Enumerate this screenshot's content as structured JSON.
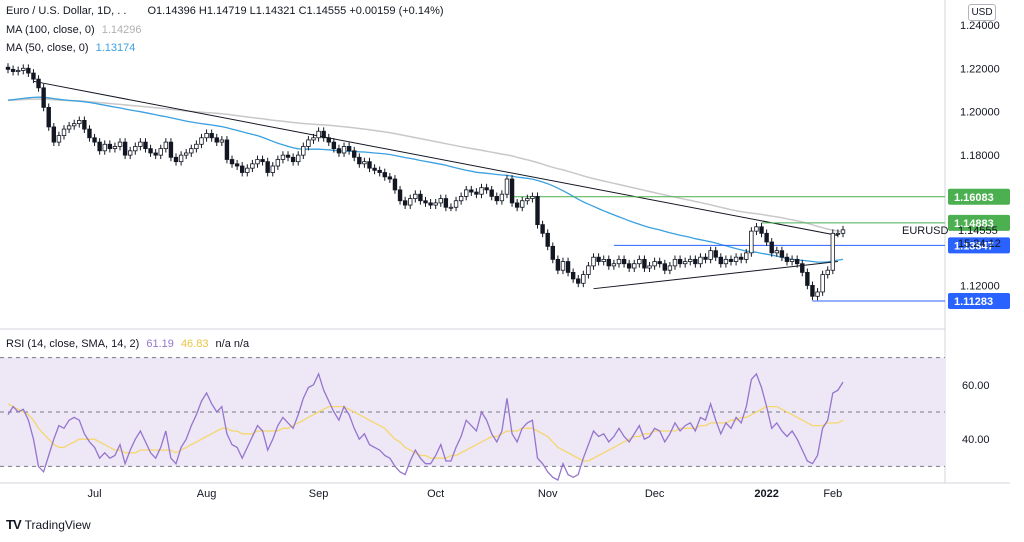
{
  "header": {
    "symbol": "Euro / U.S. Dollar, 1D, . .",
    "ohlc": "O1.14396  H1.14719  L1.14321  C1.14555  +0.00159 (+0.14%)",
    "ma100_label": "MA (100, close, 0)",
    "ma100_value": "1.14296",
    "ma50_label": "MA (50, close, 0)",
    "ma50_value": "1.13174",
    "rsi_label": "RSI (14, close, SMA, 14, 2)",
    "rsi_value": "61.19",
    "rsi_ma_value": "46.83",
    "rsi_na": "n/a  n/a",
    "currency": "USD"
  },
  "colors": {
    "candle": "#131722",
    "ma100": "#c8c8c8",
    "ma50": "#3aa0e0",
    "rsi": "#9575cd",
    "rsi_ma": "#f5d76e",
    "rsi_band": "#ede7f6",
    "green_level": "#4caf50",
    "blue_level": "#2962ff"
  },
  "price_labels": {
    "r1": "1.16083",
    "r2": "1.14883",
    "last": "1.14555",
    "symbol_tag": "EURUSD",
    "countdown": "15:24:12",
    "s1": "1.13847",
    "s2": "1.11283"
  },
  "branding": "TradingView",
  "chart_data": [
    {
      "type": "candlestick",
      "title": "Euro / U.S. Dollar, 1D",
      "x_tick_labels": [
        "Jul",
        "Aug",
        "Sep",
        "Oct",
        "Nov",
        "Dec",
        "2022",
        "Feb"
      ],
      "y_tick_labels": [
        "1.24000",
        "1.22000",
        "1.20000",
        "1.18000",
        "1.12000"
      ],
      "ylim": [
        1.105,
        1.245
      ],
      "close_series": [
        1.2195,
        1.2185,
        1.219,
        1.22,
        1.2178,
        1.215,
        1.211,
        1.202,
        1.193,
        1.186,
        1.189,
        1.192,
        1.1935,
        1.1945,
        1.196,
        1.192,
        1.188,
        1.186,
        1.182,
        1.185,
        1.183,
        1.184,
        1.186,
        1.18,
        1.182,
        1.184,
        1.186,
        1.183,
        1.181,
        1.18,
        1.183,
        1.186,
        1.179,
        1.177,
        1.18,
        1.181,
        1.183,
        1.185,
        1.188,
        1.19,
        1.188,
        1.186,
        1.187,
        1.178,
        1.176,
        1.175,
        1.172,
        1.174,
        1.176,
        1.178,
        1.177,
        1.172,
        1.175,
        1.178,
        1.18,
        1.179,
        1.177,
        1.18,
        1.184,
        1.187,
        1.188,
        1.191,
        1.188,
        1.186,
        1.183,
        1.181,
        1.184,
        1.182,
        1.179,
        1.176,
        1.177,
        1.174,
        1.173,
        1.172,
        1.17,
        1.169,
        1.164,
        1.159,
        1.157,
        1.16,
        1.162,
        1.159,
        1.158,
        1.157,
        1.158,
        1.16,
        1.156,
        1.156,
        1.159,
        1.161,
        1.164,
        1.163,
        1.162,
        1.165,
        1.164,
        1.161,
        1.159,
        1.162,
        1.169,
        1.158,
        1.156,
        1.159,
        1.16,
        1.161,
        1.148,
        1.144,
        1.138,
        1.132,
        1.127,
        1.131,
        1.126,
        1.123,
        1.121,
        1.125,
        1.129,
        1.133,
        1.131,
        1.132,
        1.129,
        1.13,
        1.132,
        1.13,
        1.128,
        1.13,
        1.132,
        1.128,
        1.129,
        1.131,
        1.13,
        1.127,
        1.129,
        1.132,
        1.13,
        1.131,
        1.132,
        1.13,
        1.133,
        1.132,
        1.136,
        1.133,
        1.13,
        1.132,
        1.131,
        1.133,
        1.132,
        1.135,
        1.145,
        1.147,
        1.144,
        1.14,
        1.135,
        1.136,
        1.133,
        1.131,
        1.132,
        1.13,
        1.126,
        1.12,
        1.115,
        1.117,
        1.125,
        1.127,
        1.144,
        1.144,
        1.1456
      ],
      "series": [
        {
          "name": "MA (100, close, 0)",
          "last": 1.14296
        },
        {
          "name": "MA (50, close, 0)",
          "last": 1.13174
        }
      ],
      "levels": [
        1.16083,
        1.14883,
        1.14555,
        1.13847,
        1.11283
      ]
    },
    {
      "type": "line",
      "title": "RSI (14, close, SMA, 14, 2)",
      "y_tick_labels": [
        "60.00",
        "40.00"
      ],
      "ylim": [
        25,
        75
      ],
      "guides": [
        70,
        50,
        30
      ],
      "rsi_series": [
        49,
        52,
        50,
        51,
        47,
        40,
        30,
        28,
        34,
        40,
        45,
        44,
        47,
        48,
        47,
        42,
        39,
        37,
        33,
        35,
        33,
        34,
        38,
        31,
        36,
        40,
        43,
        39,
        35,
        33,
        37,
        43,
        33,
        31,
        37,
        40,
        45,
        49,
        54,
        57,
        53,
        50,
        52,
        42,
        38,
        37,
        33,
        37,
        41,
        45,
        43,
        36,
        40,
        45,
        48,
        46,
        44,
        49,
        55,
        59,
        60,
        64,
        58,
        54,
        50,
        47,
        52,
        49,
        44,
        40,
        42,
        38,
        37,
        36,
        34,
        33,
        30,
        28,
        27,
        32,
        36,
        33,
        31,
        31,
        34,
        38,
        32,
        32,
        37,
        41,
        47,
        45,
        43,
        50,
        47,
        42,
        39,
        43,
        55,
        42,
        39,
        44,
        46,
        47,
        33,
        31,
        28,
        26,
        25,
        31,
        27,
        26,
        27,
        33,
        38,
        43,
        41,
        42,
        39,
        41,
        44,
        41,
        39,
        42,
        45,
        40,
        41,
        44,
        43,
        39,
        42,
        46,
        43,
        45,
        46,
        43,
        48,
        47,
        53,
        47,
        42,
        46,
        44,
        48,
        46,
        52,
        62,
        64,
        59,
        52,
        44,
        46,
        43,
        41,
        43,
        40,
        36,
        32,
        31,
        34,
        44,
        47,
        57,
        58,
        61
      ],
      "rsi_ma_series": [
        53,
        52,
        51,
        50,
        49,
        47,
        44,
        42,
        40,
        38,
        37,
        37,
        38,
        39,
        40,
        40,
        40,
        40,
        39,
        38,
        37,
        36,
        36,
        35,
        35,
        35,
        36,
        36,
        36,
        36,
        36,
        36,
        36,
        35,
        36,
        37,
        38,
        39,
        40,
        41,
        42,
        43,
        44,
        44,
        43,
        43,
        42,
        42,
        42,
        43,
        43,
        43,
        43,
        43,
        44,
        44,
        45,
        46,
        47,
        48,
        49,
        50,
        51,
        52,
        52,
        52,
        52,
        51,
        50,
        49,
        48,
        47,
        46,
        45,
        44,
        42,
        40,
        39,
        37,
        36,
        35,
        34,
        34,
        33,
        33,
        33,
        33,
        34,
        34,
        35,
        36,
        37,
        38,
        39,
        40,
        41,
        41,
        42,
        43,
        43,
        43,
        44,
        44,
        44,
        43,
        42,
        41,
        39,
        37,
        36,
        35,
        34,
        33,
        32,
        32,
        33,
        34,
        35,
        36,
        37,
        38,
        39,
        40,
        41,
        41,
        42,
        42,
        43,
        43,
        43,
        43,
        43,
        44,
        44,
        44,
        44,
        45,
        45,
        46,
        46,
        46,
        46,
        47,
        47,
        48,
        48,
        49,
        50,
        51,
        52,
        52,
        52,
        51,
        50,
        49,
        48,
        47,
        46,
        45,
        45,
        45,
        46,
        46,
        46,
        47
      ]
    }
  ]
}
